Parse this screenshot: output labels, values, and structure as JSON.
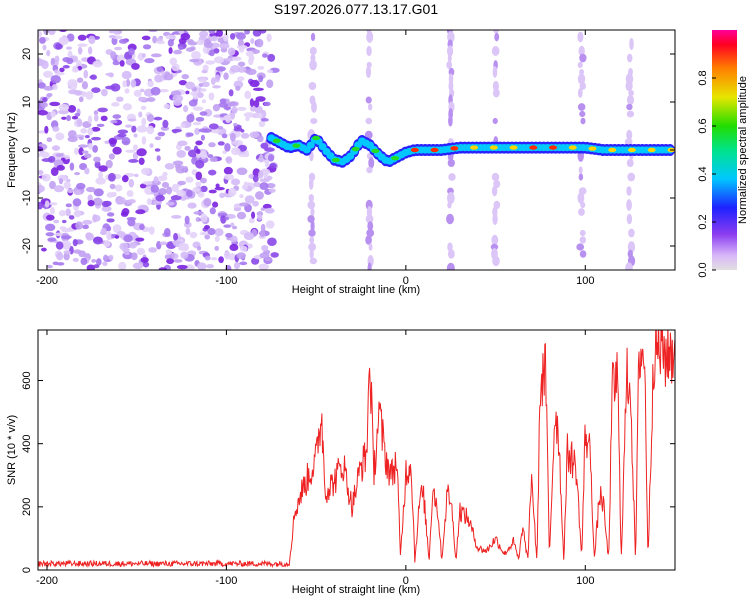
{
  "title": "S197.2026.077.13.17.G01",
  "chart_data": [
    {
      "type": "heatmap",
      "title": "S197.2026.077.13.17.G01",
      "xlabel": "Height of straight line (km)",
      "ylabel": "Frequency (Hz)",
      "xlim": [
        -205,
        150
      ],
      "ylim": [
        -25,
        25
      ],
      "xticks": [
        -200,
        -100,
        0,
        100
      ],
      "yticks": [
        -20,
        -10,
        0,
        10,
        20
      ],
      "colorbar": {
        "label": "Normalized spectral amplitude",
        "range": [
          0,
          1
        ],
        "ticks": [
          0.0,
          0.2,
          0.4,
          0.6,
          0.8
        ]
      },
      "noise_region_x": [
        -205,
        -73
      ],
      "signal_track": {
        "x": [
          -75,
          -70,
          -65,
          -60,
          -55,
          -50,
          -45,
          -40,
          -35,
          -30,
          -25,
          -20,
          -15,
          -10,
          -5,
          0,
          5,
          10,
          15,
          20,
          30,
          40,
          50,
          60,
          70,
          80,
          90,
          100,
          110,
          120,
          130,
          140,
          148
        ],
        "frequency": [
          2.5,
          1.5,
          0.5,
          1.0,
          0.0,
          2.5,
          0.0,
          -2.0,
          -2.5,
          -1.0,
          2.0,
          1.0,
          -1.0,
          -2.5,
          -1.5,
          -0.5,
          0.0,
          0.0,
          0.0,
          0.0,
          0.5,
          0.5,
          0.5,
          0.5,
          0.5,
          0.5,
          0.5,
          0.5,
          0.0,
          0.0,
          0.0,
          0.0,
          0.0
        ]
      },
      "vertical_streaks_x": [
        -52,
        -20,
        25,
        50,
        98,
        125
      ]
    },
    {
      "type": "line",
      "xlabel": "Height of straight line (km)",
      "ylabel": "SNR (10 * v/v)",
      "xlim": [
        -205,
        150
      ],
      "ylim": [
        0,
        760
      ],
      "xticks": [
        -200,
        -100,
        0,
        100
      ],
      "yticks": [
        0,
        200,
        400,
        600
      ],
      "series": [
        {
          "name": "SNR",
          "color": "#ee2222",
          "x": [
            -205,
            -150,
            -100,
            -65,
            -62,
            -58,
            -50,
            -47,
            -45,
            -40,
            -35,
            -30,
            -25,
            -22,
            -20,
            -18,
            -15,
            -12,
            -10,
            -8,
            -5,
            -3,
            0,
            3,
            5,
            8,
            10,
            13,
            15,
            18,
            20,
            23,
            25,
            28,
            30,
            35,
            40,
            45,
            50,
            55,
            60,
            63,
            65,
            68,
            70,
            73,
            75,
            78,
            80,
            83,
            85,
            88,
            90,
            92,
            95,
            98,
            100,
            103,
            105,
            108,
            110,
            113,
            115,
            118,
            120,
            123,
            125,
            128,
            130,
            133,
            135,
            138,
            140,
            145,
            150
          ],
          "values": [
            20,
            20,
            20,
            20,
            180,
            250,
            350,
            500,
            250,
            280,
            340,
            200,
            330,
            360,
            680,
            300,
            500,
            380,
            330,
            300,
            350,
            40,
            310,
            340,
            30,
            240,
            230,
            30,
            270,
            180,
            30,
            240,
            230,
            30,
            190,
            160,
            70,
            60,
            100,
            50,
            90,
            30,
            140,
            30,
            310,
            20,
            600,
            620,
            40,
            500,
            450,
            30,
            370,
            360,
            320,
            40,
            440,
            360,
            30,
            240,
            210,
            30,
            560,
            620,
            30,
            600,
            620,
            20,
            700,
            680,
            30,
            690,
            710,
            680,
            700
          ]
        }
      ]
    }
  ]
}
